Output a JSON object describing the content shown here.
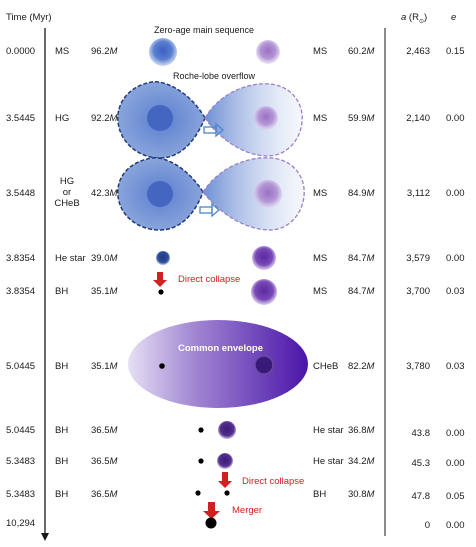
{
  "header": {
    "time": "Time (Myr)",
    "a_prefix": "a",
    "a_unit": " (R",
    "a_suffix": ")",
    "e": "e"
  },
  "rows": [
    {
      "time": "0.0000",
      "type1": "MS",
      "mass1_num": "96.2",
      "type2": "MS",
      "mass2_num": "60.2",
      "a": "2,463",
      "e": "0.15"
    },
    {
      "time": "3.5445",
      "type1": "HG",
      "mass1_num": "92.2",
      "type2": "MS",
      "mass2_num": "59.9",
      "a": "2,140",
      "e": "0.00"
    },
    {
      "time": "3.5448",
      "type1": "HG\nor\nCHeB",
      "mass1_num": "42.3",
      "type2": "MS",
      "mass2_num": "84.9",
      "a": "3,112",
      "e": "0.00"
    },
    {
      "time": "3.8354",
      "type1": "He star",
      "mass1_num": "39.0",
      "type2": "MS",
      "mass2_num": "84.7",
      "a": "3,579",
      "e": "0.00"
    },
    {
      "time": "3.8354",
      "type1": "BH",
      "mass1_num": "35.1",
      "type2": "MS",
      "mass2_num": "84.7",
      "a": "3,700",
      "e": "0.03"
    },
    {
      "time": "5.0445",
      "type1": "BH",
      "mass1_num": "35.1",
      "type2": "CHeB",
      "mass2_num": "82.2",
      "a": "3,780",
      "e": "0.03"
    },
    {
      "time": "5.0445",
      "type1": "BH",
      "mass1_num": "36.5",
      "type2": "He star",
      "mass2_num": "36.8",
      "a": "43.8",
      "e": "0.00"
    },
    {
      "time": "5.3483",
      "type1": "BH",
      "mass1_num": "36.5",
      "type2": "He star",
      "mass2_num": "34.2",
      "a": "45.3",
      "e": "0.00"
    },
    {
      "time": "5.3483",
      "type1": "BH",
      "mass1_num": "36.5",
      "type2": "BH",
      "mass2_num": "30.8",
      "a": "47.8",
      "e": "0.05"
    },
    {
      "time": "10,294",
      "type1": "",
      "mass1_num": "",
      "type2": "",
      "mass2_num": "",
      "a": "0",
      "e": "0.00"
    }
  ],
  "mass_unit": "M",
  "stage_labels": {
    "zams": "Zero-age main sequence",
    "rlof": "Roche-lobe overflow",
    "collapse1": "Direct collapse",
    "common_envelope": "Common envelope",
    "collapse2": "Direct collapse",
    "merger": "Merger"
  },
  "colors": {
    "primary_blue": "#4a73c4",
    "companion_purple": "#8a5fb5",
    "envelope_purple": "#5a2aa8",
    "arrow_red": "#d02020",
    "arrow_blue": "#4a86c8"
  }
}
